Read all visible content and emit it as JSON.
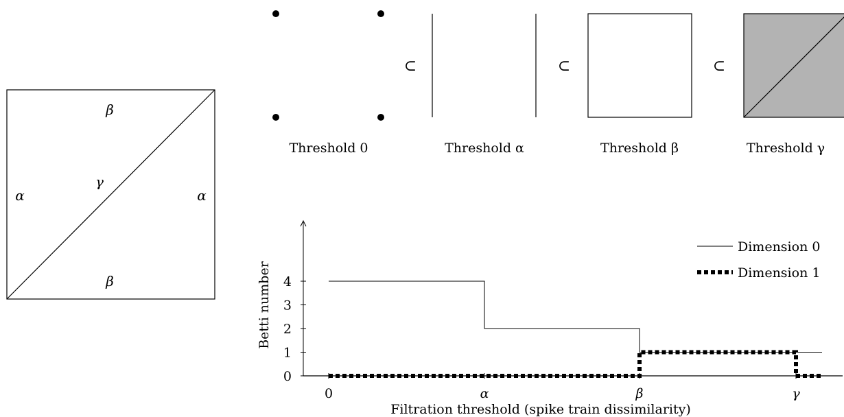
{
  "square_complex": {
    "top_edge_label": "β",
    "bottom_edge_label": "β",
    "left_edge_label": "α",
    "right_edge_label": "α",
    "diagonal_label": "γ"
  },
  "filtration": {
    "subset_symbol": "⊂",
    "stages": [
      {
        "label": "Threshold 0"
      },
      {
        "label": "Threshold α"
      },
      {
        "label": "Threshold β"
      },
      {
        "label": "Threshold γ"
      }
    ],
    "fill_color": "#b3b3b3"
  },
  "chart_data": {
    "type": "line",
    "xlabel": "Filtration threshold (spike train dissimilarity)",
    "ylabel": "Betti number",
    "x_ticks": [
      "0",
      "α",
      "β",
      "γ"
    ],
    "y_ticks": [
      "0",
      "1",
      "2",
      "3",
      "4"
    ],
    "ylim": [
      0,
      4
    ],
    "legend_position": "top-right",
    "series": [
      {
        "name": "Dimension 0",
        "style": "solid",
        "steps": [
          {
            "from": "0",
            "to": "α",
            "value": 4
          },
          {
            "from": "α",
            "to": "β",
            "value": 2
          },
          {
            "from": "β",
            "to": "end",
            "value": 1
          }
        ]
      },
      {
        "name": "Dimension 1",
        "style": "dotted",
        "steps": [
          {
            "from": "0",
            "to": "β",
            "value": 0
          },
          {
            "from": "β",
            "to": "γ",
            "value": 1
          },
          {
            "from": "γ",
            "to": "end",
            "value": 0
          }
        ]
      }
    ]
  }
}
